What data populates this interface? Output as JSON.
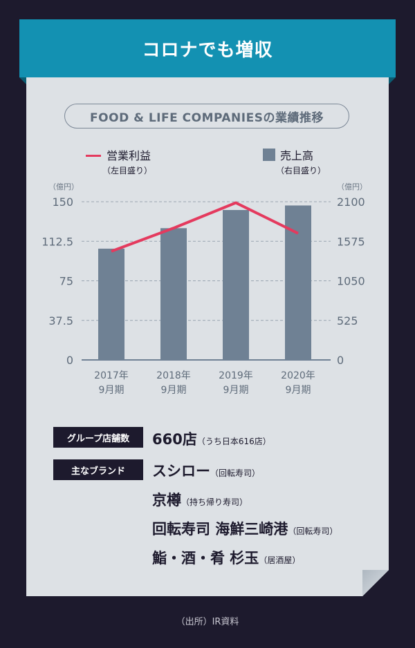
{
  "banner": {
    "title": "コロナでも増収"
  },
  "pill": {
    "text": "FOOD & LIFE COMPANIESの業績推移"
  },
  "legend": {
    "line_name": "営業利益",
    "line_sub": "（左目盛り）",
    "bar_name": "売上高",
    "bar_sub": "（右目盛り）"
  },
  "axis": {
    "left_unit": "（億円）",
    "right_unit": "（億円）"
  },
  "chart_data": {
    "type": "bar",
    "categories": [
      "2017年\n9月期",
      "2018年\n9月期",
      "2019年\n9月期",
      "2020年\n9月期"
    ],
    "category_lines": [
      [
        "2017年",
        "9月期"
      ],
      [
        "2018年",
        "9月期"
      ],
      [
        "2019年",
        "9月期"
      ],
      [
        "2020年",
        "9月期"
      ]
    ],
    "series": [
      {
        "name": "売上高",
        "type": "bar",
        "axis": "right",
        "values": [
          1477,
          1749,
          1990,
          2050
        ],
        "color": "#6f8194"
      },
      {
        "name": "営業利益",
        "type": "line",
        "axis": "left",
        "values": [
          103,
          125,
          149,
          120
        ],
        "color": "#e43a5e"
      }
    ],
    "left_ylim": [
      0,
      150
    ],
    "left_ticks": [
      "0",
      "37.5",
      "75",
      "112.5",
      "150"
    ],
    "right_ylim": [
      0,
      2100
    ],
    "right_ticks": [
      "0",
      "525",
      "1050",
      "1575",
      "2100"
    ],
    "grid": true
  },
  "info": {
    "stores_tag": "グループ店舗数",
    "stores_value": "660店",
    "stores_note": "（うち日本616店）",
    "brands_tag": "主なブランド",
    "brands": [
      {
        "name": "スシロー",
        "note": "（回転寿司）"
      },
      {
        "name": "京樽",
        "note": "（持ち帰り寿司）"
      },
      {
        "name": "回転寿司 海鮮三崎港",
        "note": "（回転寿司）"
      },
      {
        "name": "鮨・酒・肴 杉玉",
        "note": "（居酒屋）"
      }
    ]
  },
  "source": {
    "text": "（出所）IR資料"
  }
}
